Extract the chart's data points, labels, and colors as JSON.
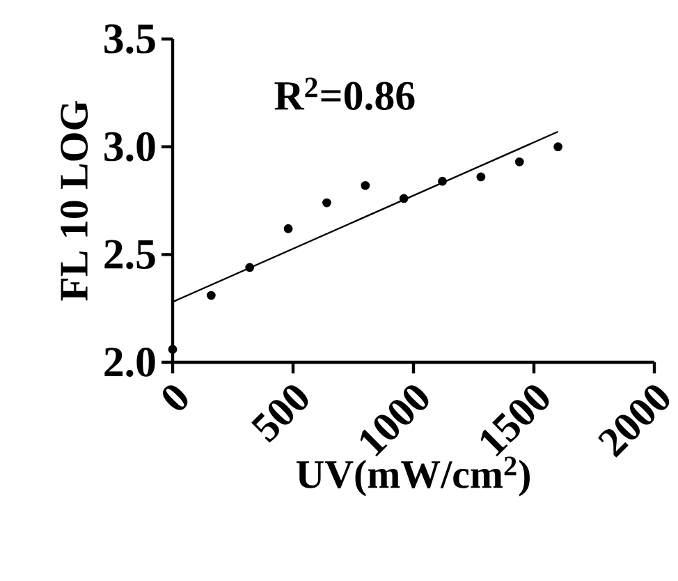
{
  "chart_data": {
    "type": "scatter",
    "xlabel": "UV(mW/cm$^{2}$)",
    "ylabel": "FL 10 LOG",
    "annotations": [
      "R$^{2}$=0.86"
    ],
    "series": [
      {
        "color": "#000000",
        "marker": "circle",
        "x": [
          0,
          160,
          320,
          480,
          640,
          800,
          960,
          1120,
          1280,
          1440,
          1600
        ],
        "values": [
          2.06,
          2.31,
          2.44,
          2.62,
          2.74,
          2.82,
          2.76,
          2.84,
          2.86,
          2.93,
          3.0
        ]
      },
      {
        "type": "line",
        "color": "#000000",
        "marker": "none",
        "x": [
          0,
          1600
        ],
        "values": [
          2.28,
          3.07
        ]
      }
    ],
    "xlim": [
      0,
      2000
    ],
    "xticks": [
      0,
      500,
      1000,
      1500,
      2000
    ],
    "ylim": [
      2.0,
      3.5
    ],
    "yticks": [
      {
        "value": 2.0,
        "label": "2.0"
      },
      {
        "value": 2.5,
        "label": "2.5"
      },
      {
        "value": 3.0,
        "label": "3.0"
      },
      {
        "value": 3.5,
        "label": "3.5"
      }
    ]
  }
}
